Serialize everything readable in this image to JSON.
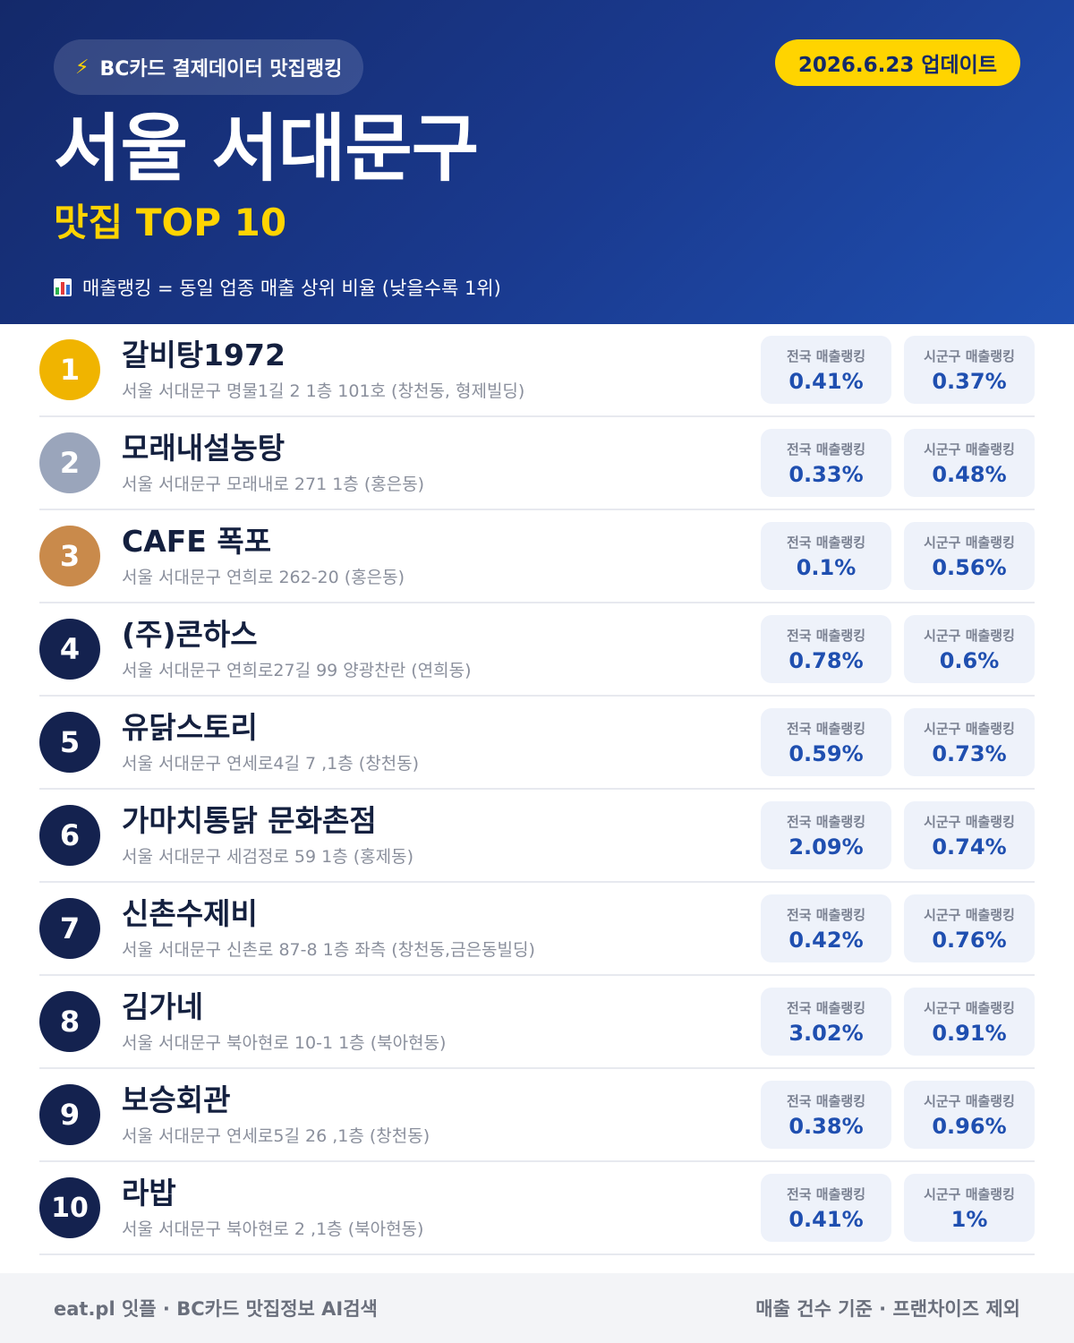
{
  "header": {
    "source_label": "BC카드 결제데이터 맛집랭킹",
    "update_label": "2026.6.23 업데이트",
    "title": "서울 서대문구",
    "subtitle": "맛집 TOP 10",
    "note": "매출랭킹 = 동일 업종 매출 상위 비율 (낮을수록 1위)",
    "icons": {
      "source": "lightning-icon",
      "note": "bar-chart-icon"
    }
  },
  "colors": {
    "header_start": "#14296a",
    "header_end": "#1f4fb0",
    "accent_yellow": "#ffd400",
    "gold": "#f0b400",
    "silver": "#9aa5bb",
    "bronze": "#c98a4b",
    "navy": "#14224f",
    "value_blue": "#1f4fb0"
  },
  "stat_labels": {
    "national": "전국 매출랭킹",
    "district": "시군구 매출랭킹"
  },
  "restaurants": [
    {
      "rank": "1",
      "name": "갈비탕1972",
      "address": "서울 서대문구 명물1길 2 1층 101호 (창천동, 형제빌딩)",
      "national": "0.41%",
      "district": "0.37%",
      "badge_color": "#f0b400"
    },
    {
      "rank": "2",
      "name": "모래내설농탕",
      "address": "서울 서대문구 모래내로 271 1층 (홍은동)",
      "national": "0.33%",
      "district": "0.48%",
      "badge_color": "#9aa5bb"
    },
    {
      "rank": "3",
      "name": "CAFE 폭포",
      "address": "서울 서대문구 연희로 262-20 (홍은동)",
      "national": "0.1%",
      "district": "0.56%",
      "badge_color": "#c98a4b"
    },
    {
      "rank": "4",
      "name": "(주)콘하스",
      "address": "서울 서대문구 연희로27길 99 양광찬란 (연희동)",
      "national": "0.78%",
      "district": "0.6%",
      "badge_color": "#14224f"
    },
    {
      "rank": "5",
      "name": "유닭스토리",
      "address": "서울 서대문구 연세로4길 7 ,1층 (창천동)",
      "national": "0.59%",
      "district": "0.73%",
      "badge_color": "#14224f"
    },
    {
      "rank": "6",
      "name": "가마치통닭 문화촌점",
      "address": "서울 서대문구 세검정로 59 1층 (홍제동)",
      "national": "2.09%",
      "district": "0.74%",
      "badge_color": "#14224f"
    },
    {
      "rank": "7",
      "name": "신촌수제비",
      "address": "서울 서대문구 신촌로 87-8 1층 좌측 (창천동,금은동빌딩)",
      "national": "0.42%",
      "district": "0.76%",
      "badge_color": "#14224f"
    },
    {
      "rank": "8",
      "name": "김가네",
      "address": "서울 서대문구 북아현로 10-1 1층 (북아현동)",
      "national": "3.02%",
      "district": "0.91%",
      "badge_color": "#14224f"
    },
    {
      "rank": "9",
      "name": "보승회관",
      "address": "서울 서대문구 연세로5길 26 ,1층 (창천동)",
      "national": "0.38%",
      "district": "0.96%",
      "badge_color": "#14224f"
    },
    {
      "rank": "10",
      "name": "라밥",
      "address": "서울 서대문구 북아현로 2 ,1층 (북아현동)",
      "national": "0.41%",
      "district": "1%",
      "badge_color": "#14224f"
    }
  ],
  "footer": {
    "left": "eat.pl 잇플 · BC카드 맛집정보 AI검색",
    "right": "매출 건수 기준 · 프랜차이즈 제외"
  }
}
